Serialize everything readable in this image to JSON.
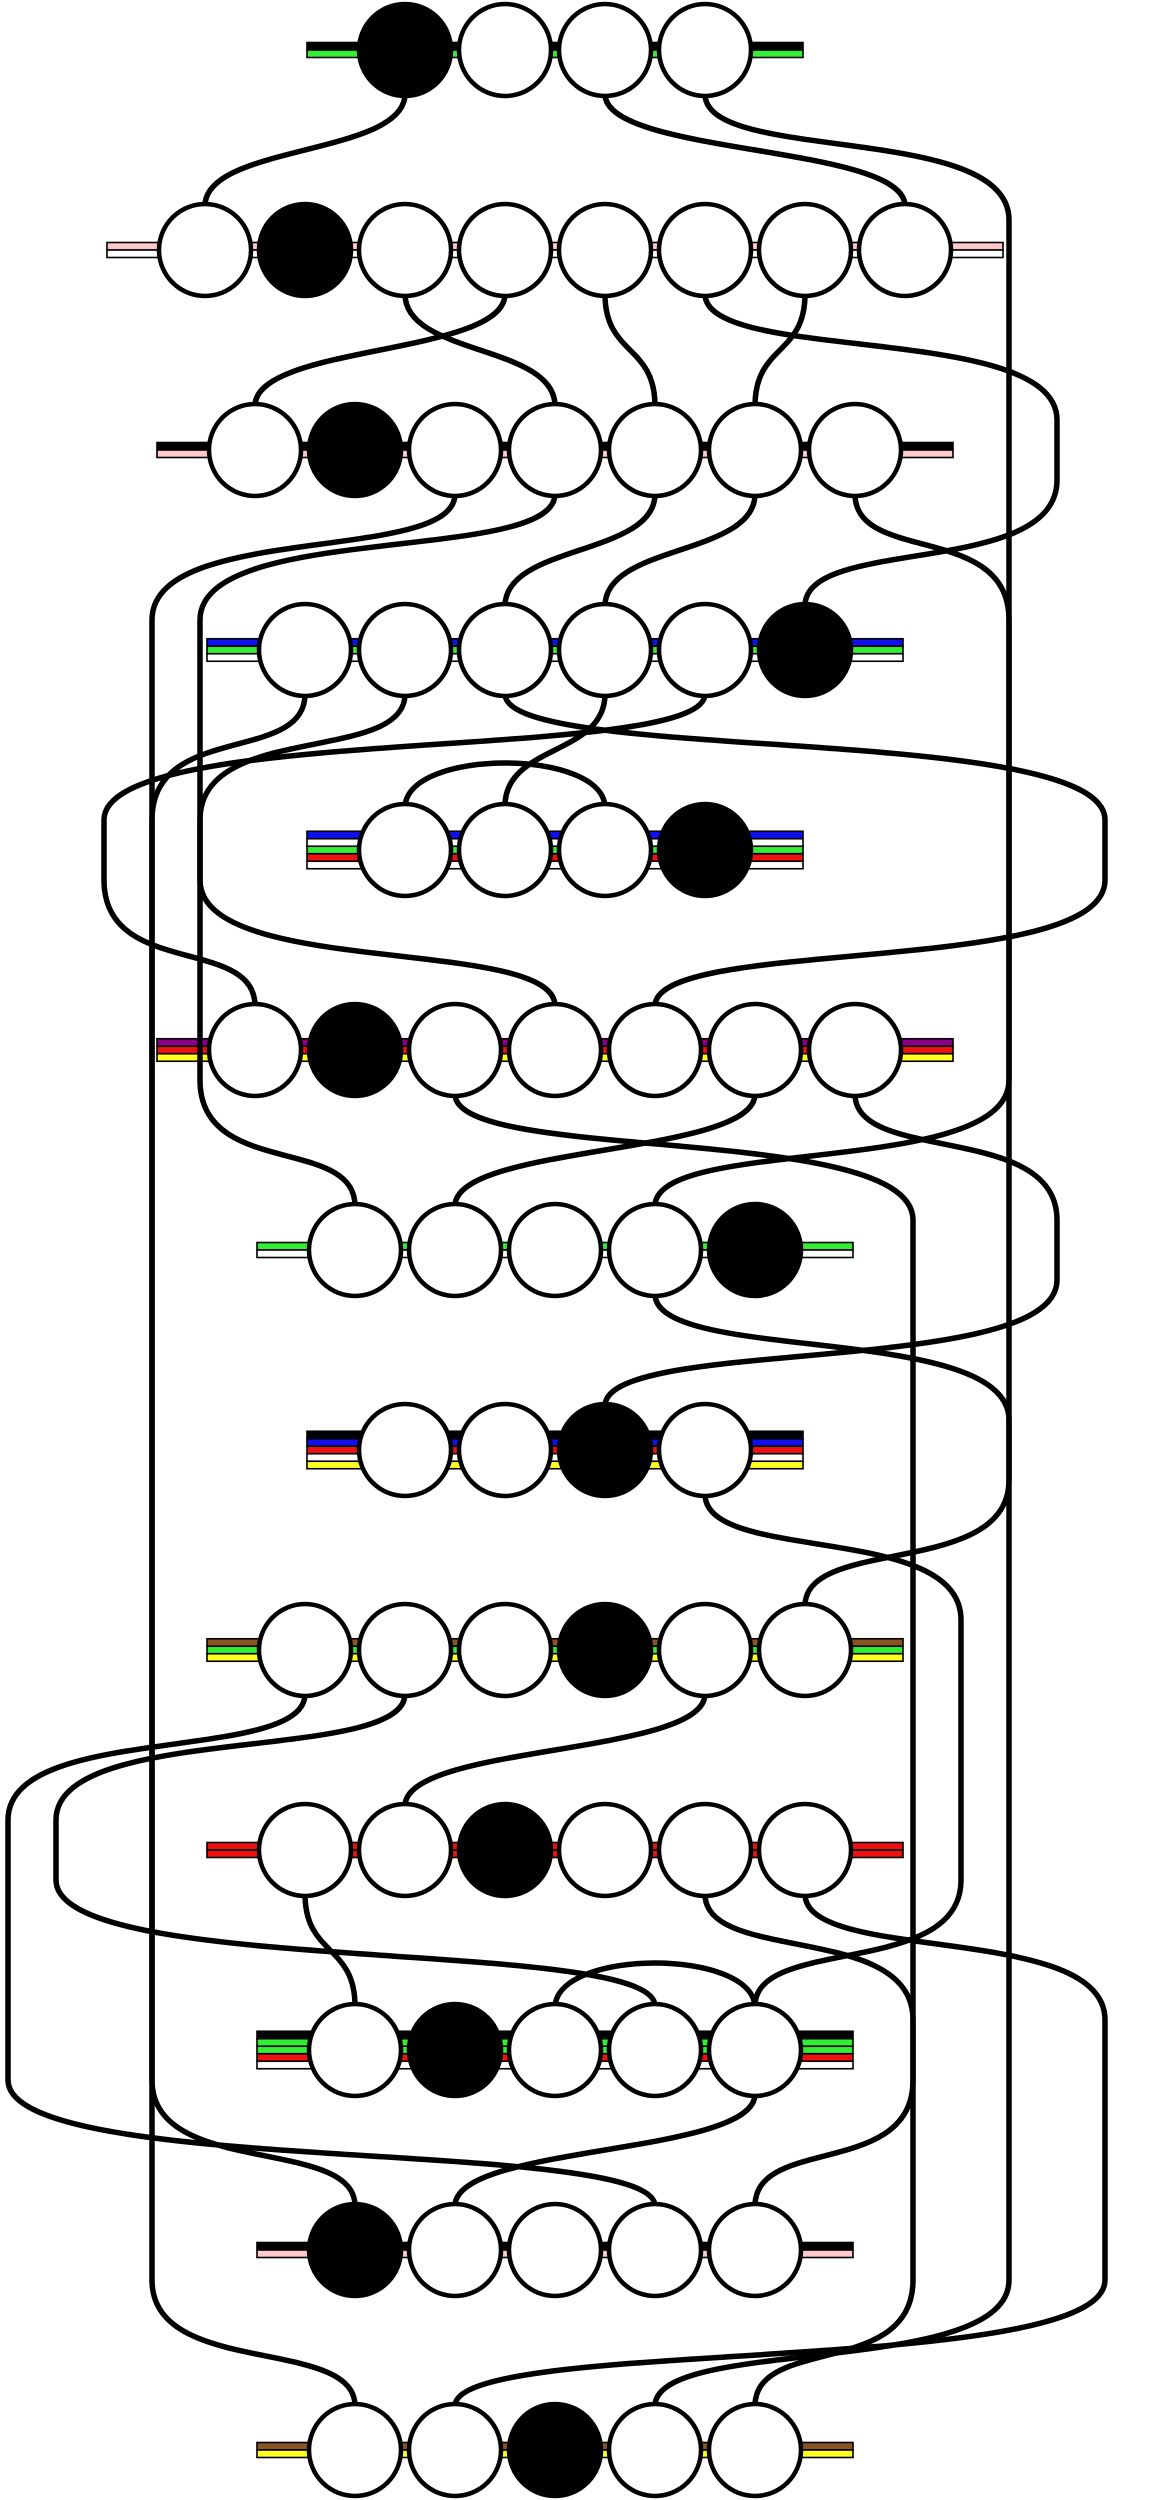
{
  "colors": {
    "black": "#000000",
    "white": "#ffffff",
    "green": "#33ee33",
    "pink": "#ffc8cc",
    "blue": "#1010ee",
    "red": "#ee1111",
    "purple": "#880088",
    "yellow": "#ffff22",
    "brown": "#885522"
  },
  "rows": [
    {
      "nodes": 4,
      "filled": [
        0
      ],
      "bars": [
        "black",
        "green"
      ]
    },
    {
      "nodes": 8,
      "filled": [
        1
      ],
      "bars": [
        "pink",
        "white"
      ]
    },
    {
      "nodes": 7,
      "filled": [
        1
      ],
      "bars": [
        "black",
        "pink"
      ]
    },
    {
      "nodes": 6,
      "filled": [
        5
      ],
      "bars": [
        "blue",
        "green",
        "white"
      ]
    },
    {
      "nodes": 4,
      "filled": [
        3
      ],
      "bars": [
        "blue",
        "white",
        "green",
        "red",
        "white"
      ]
    },
    {
      "nodes": 7,
      "filled": [
        1
      ],
      "bars": [
        "purple",
        "red",
        "yellow"
      ]
    },
    {
      "nodes": 5,
      "filled": [
        4
      ],
      "bars": [
        "green",
        "white"
      ]
    },
    {
      "nodes": 4,
      "filled": [
        2
      ],
      "bars": [
        "black",
        "blue",
        "red",
        "white",
        "yellow"
      ]
    },
    {
      "nodes": 6,
      "filled": [
        3
      ],
      "bars": [
        "brown",
        "green",
        "yellow"
      ]
    },
    {
      "nodes": 6,
      "filled": [
        2
      ],
      "bars": [
        "red",
        "red"
      ]
    },
    {
      "nodes": 5,
      "filled": [
        1
      ],
      "bars": [
        "black",
        "green",
        "green",
        "red",
        "white"
      ]
    },
    {
      "nodes": 5,
      "filled": [
        0
      ],
      "bars": [
        "black",
        "pink"
      ]
    },
    {
      "nodes": 5,
      "filled": [
        2
      ],
      "bars": [
        "brown",
        "yellow"
      ]
    }
  ],
  "connections": [
    {
      "from": [
        0,
        0
      ],
      "to": [
        1,
        0
      ]
    },
    {
      "from": [
        0,
        2
      ],
      "to": [
        1,
        7
      ]
    },
    {
      "from": [
        0,
        3
      ],
      "to": [
        6,
        3
      ]
    },
    {
      "from": [
        1,
        2
      ],
      "to": [
        2,
        3
      ]
    },
    {
      "from": [
        1,
        3
      ],
      "to": [
        2,
        0
      ]
    },
    {
      "from": [
        1,
        4
      ],
      "to": [
        2,
        4
      ]
    },
    {
      "from": [
        1,
        5
      ],
      "to": [
        3,
        5
      ]
    },
    {
      "from": [
        1,
        6
      ],
      "to": [
        2,
        5
      ]
    },
    {
      "from": [
        2,
        2
      ],
      "to": [
        11,
        0
      ]
    },
    {
      "from": [
        2,
        3
      ],
      "to": [
        6,
        0
      ]
    },
    {
      "from": [
        2,
        4
      ],
      "to": [
        3,
        2
      ]
    },
    {
      "from": [
        2,
        5
      ],
      "to": [
        3,
        3
      ]
    },
    {
      "from": [
        2,
        6
      ],
      "to": [
        8,
        5
      ]
    },
    {
      "from": [
        3,
        0
      ],
      "to": [
        12,
        0
      ]
    },
    {
      "from": [
        3,
        1
      ],
      "to": [
        5,
        3
      ]
    },
    {
      "from": [
        3,
        2
      ],
      "to": [
        5,
        4
      ]
    },
    {
      "from": [
        3,
        3
      ],
      "to": [
        4,
        1
      ]
    },
    {
      "from": [
        3,
        4
      ],
      "to": [
        5,
        0
      ]
    },
    {
      "from": [
        4,
        2
      ],
      "to": [
        4,
        0
      ]
    },
    {
      "from": [
        5,
        2
      ],
      "to": [
        12,
        4
      ]
    },
    {
      "from": [
        5,
        5
      ],
      "to": [
        6,
        1
      ]
    },
    {
      "from": [
        5,
        6
      ],
      "to": [
        7,
        2
      ]
    },
    {
      "from": [
        6,
        3
      ],
      "to": [
        12,
        3
      ]
    },
    {
      "from": [
        7,
        3
      ],
      "to": [
        10,
        4
      ]
    },
    {
      "from": [
        7,
        4
      ],
      "to": [
        8,
        2
      ]
    },
    {
      "from": [
        8,
        0
      ],
      "to": [
        11,
        3
      ]
    },
    {
      "from": [
        8,
        1
      ],
      "to": [
        10,
        3
      ]
    },
    {
      "from": [
        8,
        4
      ],
      "to": [
        9,
        1
      ]
    },
    {
      "from": [
        9,
        0
      ],
      "to": [
        10,
        0
      ]
    },
    {
      "from": [
        9,
        4
      ],
      "to": [
        11,
        4
      ]
    },
    {
      "from": [
        9,
        5
      ],
      "to": [
        12,
        1
      ]
    },
    {
      "from": [
        10,
        2
      ],
      "to": [
        10,
        4
      ]
    },
    {
      "from": [
        10,
        4
      ],
      "to": [
        11,
        1
      ]
    }
  ]
}
